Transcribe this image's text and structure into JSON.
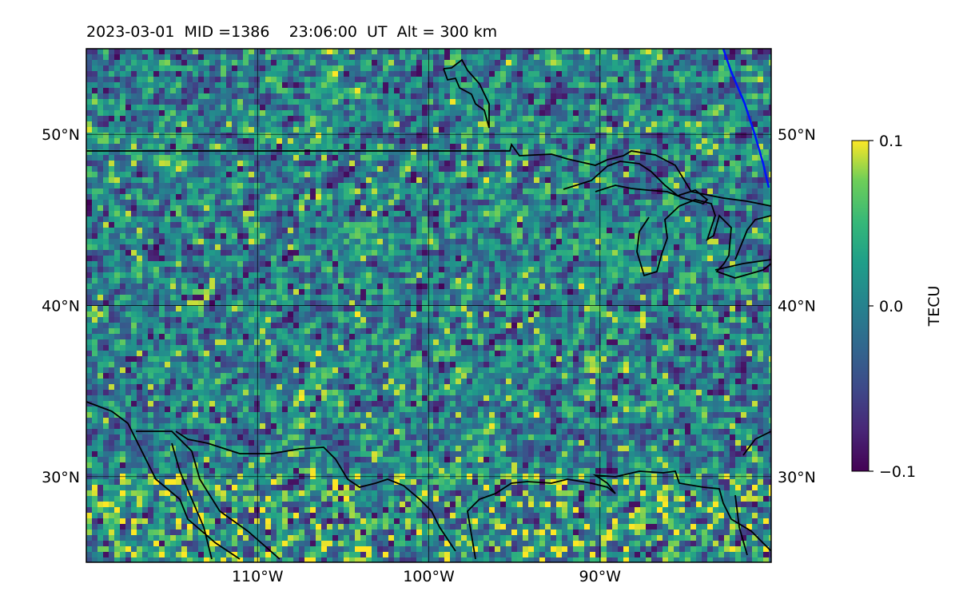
{
  "title": "2023-03-01  MID =1386    23:06:00  UT  Alt = 300 km",
  "map": {
    "lon_range": [
      -120,
      -80
    ],
    "lat_range": [
      25,
      55
    ],
    "lon_ticks": [
      {
        "value": -110,
        "label": "110°W"
      },
      {
        "value": -100,
        "label": "100°W"
      },
      {
        "value": -90,
        "label": "90°W"
      }
    ],
    "lat_ticks": [
      {
        "value": 30,
        "label": "30°N"
      },
      {
        "value": 40,
        "label": "40°N"
      },
      {
        "value": 50,
        "label": "50°N"
      }
    ],
    "field": "Detrended TEC perturbation map (pixelated, mostly near zero, positive patches near Gulf coast and Mexico)",
    "colormap": "viridis"
  },
  "colorbar": {
    "label": "TECU",
    "min": -0.1,
    "max": 0.1,
    "ticks": [
      {
        "value": 0.1,
        "label": "0.1"
      },
      {
        "value": 0.0,
        "label": "0.0"
      },
      {
        "value": -0.1,
        "label": "−0.1"
      }
    ]
  },
  "colors": {
    "coastline": "#000000",
    "terminator_line": "#0011ff",
    "viridis_low": "#440154",
    "viridis_mid": "#21918c",
    "viridis_high": "#fde725"
  }
}
